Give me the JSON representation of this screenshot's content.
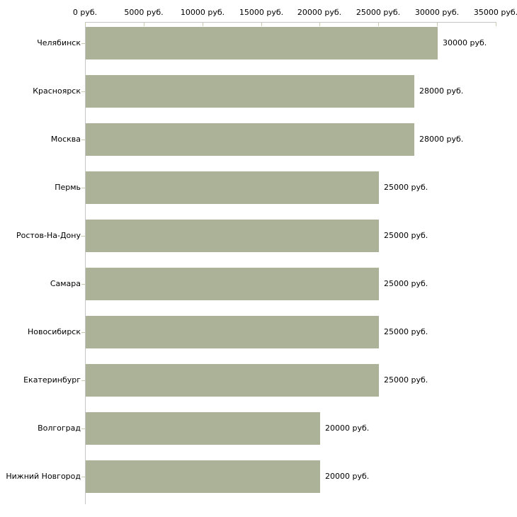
{
  "chart_data": {
    "type": "bar",
    "orientation": "horizontal",
    "title": "",
    "xlabel": "",
    "ylabel": "",
    "xlim": [
      0,
      35000
    ],
    "grid": false,
    "legend": null,
    "categories": [
      "Челябинск",
      "Красноярск",
      "Москва",
      "Пермь",
      "Ростов-На-Дону",
      "Самара",
      "Новосибирск",
      "Екатеринбург",
      "Волгоград",
      "Нижний Новгород"
    ],
    "values": [
      30000,
      28000,
      28000,
      25000,
      25000,
      25000,
      25000,
      25000,
      20000,
      20000
    ],
    "value_labels": [
      "30000 руб.",
      "28000 руб.",
      "28000 руб.",
      "25000 руб.",
      "25000 руб.",
      "25000 руб.",
      "25000 руб.",
      "25000 руб.",
      "20000 руб.",
      "20000 руб."
    ],
    "x_ticks": [
      {
        "value": 0,
        "label": "0 руб."
      },
      {
        "value": 5000,
        "label": "5000 руб."
      },
      {
        "value": 10000,
        "label": "10000 руб."
      },
      {
        "value": 15000,
        "label": "15000 руб."
      },
      {
        "value": 20000,
        "label": "20000 руб."
      },
      {
        "value": 25000,
        "label": "25000 руб."
      },
      {
        "value": 30000,
        "label": "30000 руб."
      },
      {
        "value": 35000,
        "label": "35000 руб."
      }
    ],
    "colors": {
      "bar": "#acb298",
      "axis": "#c6c6c6",
      "tick": "#c9c9ab",
      "text": "#000000",
      "background": "#ffffff"
    }
  }
}
